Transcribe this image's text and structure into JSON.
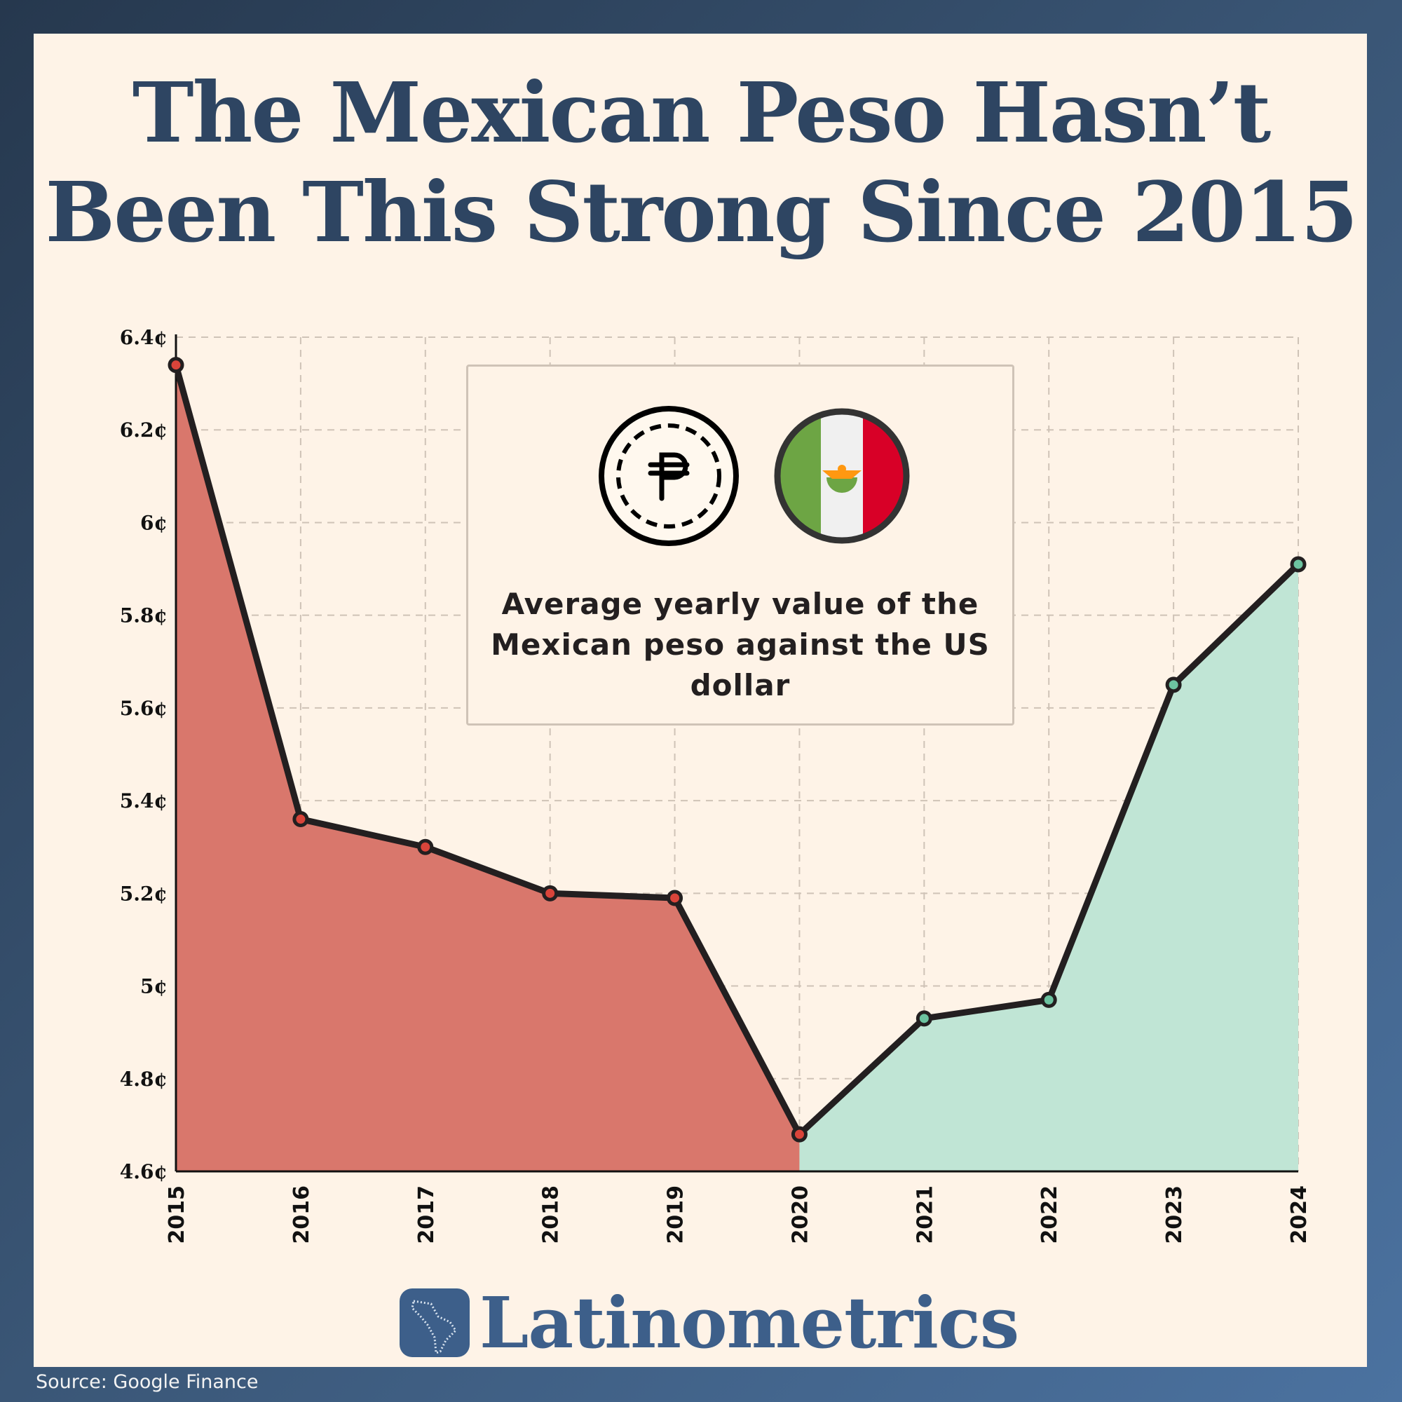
{
  "title_lines": [
    "The Mexican Peso Hasn’t",
    "Been This Strong Since 2015"
  ],
  "legend": {
    "text": "Average yearly value of the Mexican peso against the US dollar",
    "icons": [
      "peso-coin-icon",
      "mexico-flag-icon"
    ]
  },
  "brand": "Latinometrics",
  "source": "Source: Google Finance",
  "colors": {
    "decline_fill": "#d9776c",
    "rise_fill": "#c0e5d5",
    "line": "#231f20",
    "title": "#2e4562",
    "brand": "#3d5f8a"
  },
  "chart_data": {
    "type": "area",
    "title": "The Mexican Peso Hasn’t Been This Strong Since 2015",
    "x": [
      "2015",
      "2016",
      "2017",
      "2018",
      "2019",
      "2020",
      "2021",
      "2022",
      "2023",
      "2024"
    ],
    "values": [
      6.34,
      5.36,
      5.3,
      5.2,
      5.19,
      4.68,
      4.93,
      4.97,
      5.65,
      5.91
    ],
    "unit": "¢",
    "ylim": [
      4.6,
      6.4
    ],
    "yticks": [
      "4.6¢",
      "4.8¢",
      "5¢",
      "5.2¢",
      "5.4¢",
      "5.6¢",
      "5.8¢",
      "6¢",
      "6.2¢",
      "6.4¢"
    ],
    "ytick_values": [
      4.6,
      4.8,
      5.0,
      5.2,
      5.4,
      5.6,
      5.8,
      6.0,
      6.2,
      6.4
    ],
    "grid": true,
    "xlabel": "",
    "ylabel": ""
  }
}
